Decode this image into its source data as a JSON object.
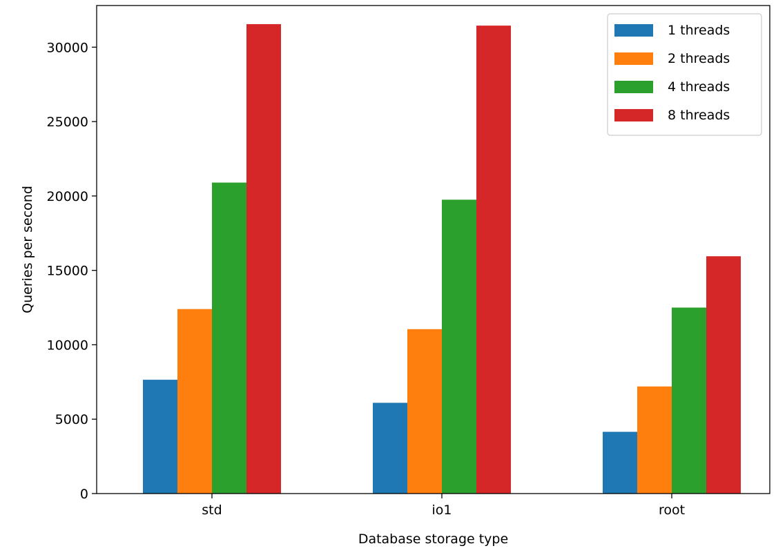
{
  "chart_data": {
    "type": "bar",
    "title": "",
    "xlabel": "Database storage type",
    "ylabel": "Queries per second",
    "categories": [
      "std",
      "io1",
      "root"
    ],
    "ylim": [
      0,
      32800
    ],
    "yticks": [
      0,
      5000,
      10000,
      15000,
      20000,
      25000,
      30000
    ],
    "grid": false,
    "legend_position": "top-right",
    "series": [
      {
        "name": "1 threads",
        "color": "#1f77b4",
        "values": [
          7650,
          6100,
          4150
        ]
      },
      {
        "name": "2 threads",
        "color": "#ff7f0e",
        "values": [
          12400,
          11050,
          7200
        ]
      },
      {
        "name": "4 threads",
        "color": "#2ca02c",
        "values": [
          20900,
          19750,
          12500
        ]
      },
      {
        "name": "8 threads",
        "color": "#d62728",
        "values": [
          31550,
          31450,
          15950
        ]
      }
    ]
  }
}
